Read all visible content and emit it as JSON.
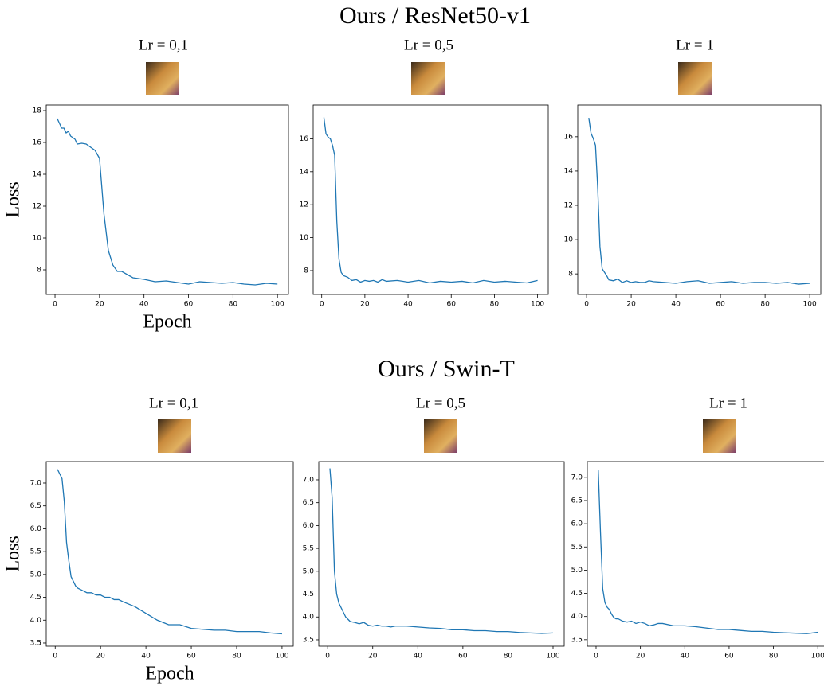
{
  "figure_titles": [
    "Ours / ResNet50-v1",
    "Ours / Swin-T"
  ],
  "chart_data": [
    {
      "type": "line",
      "title": "Lr = 0,1",
      "ylabel": "Loss",
      "xlabel": "Epoch",
      "x": [
        1,
        2,
        3,
        4,
        5,
        6,
        7,
        8,
        9,
        10,
        12,
        14,
        16,
        18,
        20,
        22,
        24,
        26,
        28,
        30,
        35,
        40,
        45,
        50,
        55,
        60,
        65,
        70,
        75,
        80,
        85,
        90,
        95,
        100
      ],
      "series": [
        {
          "color": "#1f77b4",
          "values": [
            17.5,
            17.2,
            16.9,
            16.9,
            16.6,
            16.7,
            16.4,
            16.3,
            16.2,
            15.9,
            15.95,
            15.9,
            15.7,
            15.5,
            15.0,
            11.5,
            9.2,
            8.3,
            7.9,
            7.9,
            7.5,
            7.4,
            7.25,
            7.3,
            7.2,
            7.1,
            7.25,
            7.2,
            7.15,
            7.2,
            7.1,
            7.05,
            7.15,
            7.1
          ]
        }
      ],
      "xlim": [
        -3.95,
        104.95
      ],
      "xticks": [
        0,
        20,
        40,
        60,
        80,
        100
      ],
      "ylim": [
        6.45,
        18.35
      ],
      "yticks": [
        8,
        10,
        12,
        14,
        16,
        18
      ]
    },
    {
      "type": "line",
      "title": "Lr = 0,5",
      "x": [
        1,
        2,
        3,
        4,
        5,
        6,
        7,
        8,
        9,
        10,
        12,
        14,
        16,
        18,
        20,
        22,
        24,
        26,
        28,
        30,
        35,
        40,
        45,
        50,
        55,
        60,
        65,
        70,
        75,
        80,
        85,
        90,
        95,
        100
      ],
      "series": [
        {
          "color": "#1f77b4",
          "values": [
            17.3,
            16.3,
            16.1,
            16.0,
            15.6,
            15.0,
            11.0,
            8.7,
            7.9,
            7.7,
            7.6,
            7.4,
            7.45,
            7.3,
            7.4,
            7.35,
            7.4,
            7.3,
            7.45,
            7.35,
            7.4,
            7.3,
            7.4,
            7.25,
            7.35,
            7.3,
            7.35,
            7.25,
            7.4,
            7.3,
            7.35,
            7.3,
            7.25,
            7.4
          ]
        }
      ],
      "xlim": [
        -3.95,
        104.95
      ],
      "xticks": [
        0,
        20,
        40,
        60,
        80,
        100
      ],
      "ylim": [
        6.55,
        18.05
      ],
      "yticks": [
        8,
        10,
        12,
        14,
        16
      ]
    },
    {
      "type": "line",
      "title": "Lr = 1",
      "x": [
        1,
        2,
        3,
        4,
        5,
        6,
        7,
        8,
        9,
        10,
        12,
        14,
        16,
        18,
        20,
        22,
        24,
        26,
        28,
        30,
        35,
        40,
        45,
        50,
        55,
        60,
        65,
        70,
        75,
        80,
        85,
        90,
        95,
        100
      ],
      "series": [
        {
          "color": "#1f77b4",
          "values": [
            17.1,
            16.2,
            15.9,
            15.5,
            13.0,
            9.6,
            8.3,
            8.1,
            7.9,
            7.65,
            7.6,
            7.7,
            7.5,
            7.6,
            7.5,
            7.55,
            7.5,
            7.5,
            7.6,
            7.55,
            7.5,
            7.45,
            7.55,
            7.6,
            7.45,
            7.5,
            7.55,
            7.45,
            7.5,
            7.5,
            7.45,
            7.5,
            7.4,
            7.45
          ]
        }
      ],
      "xlim": [
        -3.95,
        104.95
      ],
      "xticks": [
        0,
        20,
        40,
        60,
        80,
        100
      ],
      "ylim": [
        6.8,
        17.85
      ],
      "yticks": [
        8,
        10,
        12,
        14,
        16
      ]
    },
    {
      "type": "line",
      "title": "Lr = 0,1",
      "ylabel": "Loss",
      "xlabel": "Epoch",
      "x": [
        1,
        2,
        3,
        4,
        5,
        6,
        7,
        8,
        9,
        10,
        12,
        14,
        16,
        18,
        20,
        22,
        24,
        26,
        28,
        30,
        35,
        40,
        45,
        50,
        55,
        60,
        65,
        70,
        75,
        80,
        85,
        90,
        95,
        100
      ],
      "series": [
        {
          "color": "#1f77b4",
          "values": [
            7.3,
            7.2,
            7.1,
            6.6,
            5.7,
            5.3,
            4.95,
            4.85,
            4.75,
            4.7,
            4.65,
            4.6,
            4.6,
            4.55,
            4.55,
            4.5,
            4.5,
            4.45,
            4.45,
            4.4,
            4.3,
            4.15,
            4.0,
            3.9,
            3.9,
            3.82,
            3.8,
            3.78,
            3.78,
            3.75,
            3.75,
            3.75,
            3.72,
            3.7
          ]
        }
      ],
      "xlim": [
        -3.95,
        104.95
      ],
      "xticks": [
        0,
        20,
        40,
        60,
        80,
        100
      ],
      "ylim": [
        3.43,
        7.47
      ],
      "yticks": [
        3.5,
        {
          "value": 4,
          "label": "4.0"
        },
        4.5,
        {
          "value": 5,
          "label": "5.0"
        },
        5.5,
        {
          "value": 6,
          "label": "6.0"
        },
        6.5,
        {
          "value": 7,
          "label": "7.0"
        }
      ]
    },
    {
      "type": "line",
      "title": "Lr = 0,5",
      "x": [
        1,
        2,
        3,
        4,
        5,
        6,
        7,
        8,
        9,
        10,
        12,
        14,
        16,
        18,
        20,
        22,
        24,
        26,
        28,
        30,
        35,
        40,
        45,
        50,
        55,
        60,
        65,
        70,
        75,
        80,
        85,
        90,
        95,
        100
      ],
      "series": [
        {
          "color": "#1f77b4",
          "values": [
            7.25,
            6.6,
            5.0,
            4.5,
            4.3,
            4.2,
            4.1,
            4.0,
            3.95,
            3.9,
            3.88,
            3.85,
            3.88,
            3.82,
            3.8,
            3.82,
            3.8,
            3.8,
            3.78,
            3.8,
            3.8,
            3.78,
            3.76,
            3.75,
            3.72,
            3.72,
            3.7,
            3.7,
            3.68,
            3.68,
            3.66,
            3.65,
            3.64,
            3.65
          ]
        }
      ],
      "xlim": [
        -3.95,
        104.95
      ],
      "xticks": [
        0,
        20,
        40,
        60,
        80,
        100
      ],
      "ylim": [
        3.36,
        7.4
      ],
      "yticks": [
        3.5,
        {
          "value": 4,
          "label": "4.0"
        },
        4.5,
        {
          "value": 5,
          "label": "5.0"
        },
        5.5,
        {
          "value": 6,
          "label": "6.0"
        },
        6.5,
        {
          "value": 7,
          "label": "7.0"
        }
      ]
    },
    {
      "type": "line",
      "title": "Lr = 1",
      "x": [
        1,
        2,
        3,
        4,
        5,
        6,
        7,
        8,
        9,
        10,
        12,
        14,
        16,
        18,
        20,
        22,
        24,
        26,
        28,
        30,
        35,
        40,
        45,
        50,
        55,
        60,
        65,
        70,
        75,
        80,
        85,
        90,
        95,
        100
      ],
      "series": [
        {
          "color": "#1f77b4",
          "values": [
            7.15,
            5.8,
            4.6,
            4.3,
            4.2,
            4.15,
            4.05,
            3.98,
            3.95,
            3.95,
            3.9,
            3.88,
            3.9,
            3.85,
            3.88,
            3.85,
            3.8,
            3.82,
            3.85,
            3.85,
            3.8,
            3.8,
            3.78,
            3.75,
            3.72,
            3.72,
            3.7,
            3.68,
            3.68,
            3.66,
            3.65,
            3.64,
            3.63,
            3.66
          ]
        }
      ],
      "xlim": [
        -3.95,
        104.95
      ],
      "xticks": [
        0,
        20,
        40,
        60,
        80,
        100
      ],
      "ylim": [
        3.36,
        7.34
      ],
      "yticks": [
        3.5,
        {
          "value": 4,
          "label": "4.0"
        },
        4.5,
        {
          "value": 5,
          "label": "5.0"
        },
        5.5,
        {
          "value": 6,
          "label": "6.0"
        },
        6.5,
        {
          "value": 7,
          "label": "7.0"
        }
      ]
    }
  ]
}
